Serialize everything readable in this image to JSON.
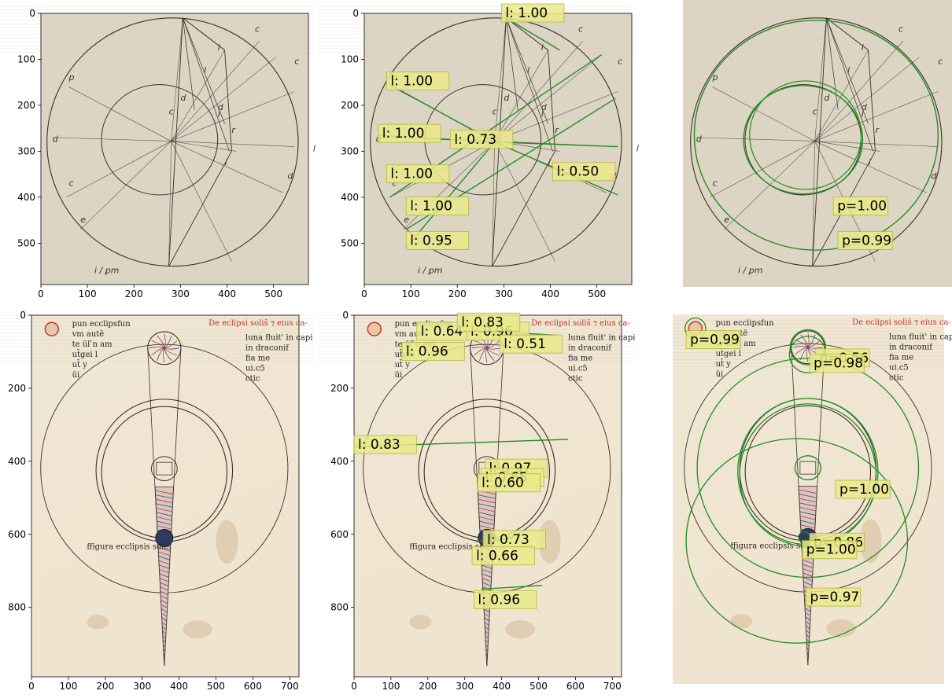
{
  "figure": {
    "colors": {
      "detection": "#1f8f1f",
      "label_bg": "#eaea8a",
      "label_border": "#b9b940",
      "ink": "#3a3028",
      "red_ink": "#c0392b",
      "parchment_top": "#ddd5c4",
      "parchment_bottom": "#efe4cf"
    },
    "top_row": {
      "x_ticks": [
        "0",
        "100",
        "200",
        "300",
        "400",
        "500"
      ],
      "y_ticks": [
        "0",
        "100",
        "200",
        "300",
        "400",
        "500"
      ],
      "side_letters": [
        "p",
        "i",
        "c",
        "d",
        "r",
        "l",
        "c",
        "e",
        "l",
        "d",
        "i",
        "c",
        "l",
        "d",
        "d",
        "c"
      ],
      "caption": "i̇ / ꝑm",
      "panel2_labels": [
        "l: 1.00",
        "l: 1.00",
        "l: 1.00",
        "l: 0.73",
        "l: 1.00",
        "l: 0.50",
        "l: 1.00",
        "l: 0.95"
      ],
      "panel3_labels": [
        "p=1.00",
        "p=0.99"
      ]
    },
    "bottom_row": {
      "x_ticks": [
        "0",
        "100",
        "200",
        "300",
        "400",
        "500",
        "600",
        "700"
      ],
      "y_ticks": [
        "0",
        "200",
        "400",
        "600",
        "800"
      ],
      "manuscript_text": {
        "left_lines": [
          "pun ecclipsfun",
          "vm autē",
          "te ūl ̄n am",
          "ut̄gei l",
          "ut̄ y",
          "ūi"
        ],
        "heading": "De eclipsi solis̄ ⁊ eius ca-",
        "right_lines": [
          "luna fluit' in capi",
          "in draconif",
          "fia me",
          "ui.c5",
          "ctic"
        ],
        "bottom_caption": "ffigura ecclipsis sol̄e."
      },
      "panel5_labels": [
        "l: 0.83",
        "l: 0.64",
        "l: 0.96",
        "l: 0.96",
        "l: 0.51",
        "l: 0.83",
        "l: 0.97",
        "l: 0.65",
        "l: 0.60",
        "l: 0.73",
        "l: 0.66",
        "l: 0.96"
      ],
      "panel6_labels": [
        "p=0.99",
        "p=0.56",
        "p=0.98",
        "p=1.00",
        "p=0.86",
        "p=1.00",
        "p=0.97"
      ]
    }
  }
}
